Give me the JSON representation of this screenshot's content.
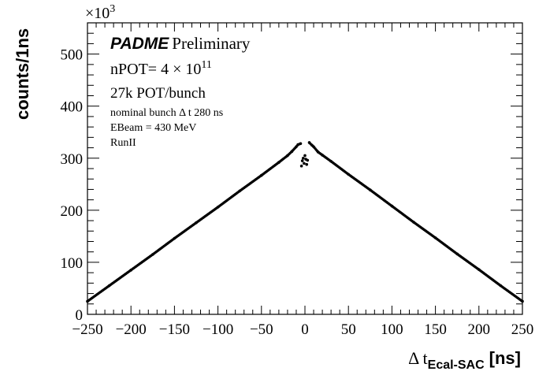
{
  "chart_data": {
    "type": "scatter",
    "xlabel_main": "Δ t",
    "xlabel_sub": "Ecal-SAC",
    "xlabel_unit": "[ns]",
    "ylabel": "counts/1ns",
    "y_exponent_base": "×10",
    "y_exponent_power": "3",
    "xlim": [
      -250,
      250
    ],
    "ylim": [
      0,
      560
    ],
    "x_ticks": [
      -250,
      -200,
      -150,
      -100,
      -50,
      0,
      50,
      100,
      150,
      200,
      250
    ],
    "x_tick_labels": [
      "−250",
      "−200",
      "−150",
      "−100",
      "−50",
      "0",
      "50",
      "100",
      "150",
      "200",
      "250"
    ],
    "y_ticks": [
      0,
      100,
      200,
      300,
      400,
      500
    ],
    "y_tick_labels": [
      "0",
      "100",
      "200",
      "300",
      "400",
      "500"
    ],
    "grid": false,
    "series": [
      {
        "values": [
          [
            -250,
            25
          ],
          [
            -225,
            55
          ],
          [
            -200,
            85
          ],
          [
            -175,
            115
          ],
          [
            -150,
            146
          ],
          [
            -125,
            176
          ],
          [
            -100,
            206
          ],
          [
            -75,
            237
          ],
          [
            -50,
            267
          ],
          [
            -30,
            292
          ],
          [
            -20,
            305
          ],
          [
            -15,
            313
          ],
          [
            -10,
            322
          ],
          [
            -8,
            326
          ],
          [
            -5,
            328
          ],
          [
            5,
            330
          ],
          [
            8,
            325
          ],
          [
            10,
            322
          ],
          [
            15,
            312
          ],
          [
            20,
            306
          ],
          [
            30,
            294
          ],
          [
            50,
            269
          ],
          [
            75,
            239
          ],
          [
            100,
            208
          ],
          [
            125,
            177
          ],
          [
            150,
            147
          ],
          [
            175,
            116
          ],
          [
            200,
            86
          ],
          [
            225,
            55
          ],
          [
            250,
            25
          ]
        ]
      }
    ],
    "outliers": [
      [
        -4,
        285
      ],
      [
        -3,
        295
      ],
      [
        -2,
        300
      ],
      [
        -1,
        290
      ],
      [
        0,
        305
      ],
      [
        1,
        298
      ],
      [
        2,
        288
      ],
      [
        3,
        296
      ]
    ]
  },
  "annotations": {
    "experiment": "PADME",
    "status": "Preliminary",
    "npot_prefix": "nPOT= 4 × 10",
    "npot_exp": "11",
    "pot_bunch": "27k POT/bunch",
    "bunch_dt": "nominal bunch Δ t 280 ns",
    "ebeam": "EBeam = 430 MeV",
    "run": "RunII"
  }
}
